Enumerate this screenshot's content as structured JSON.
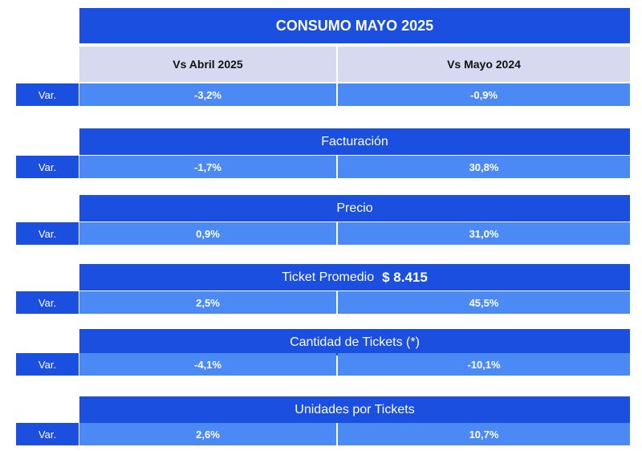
{
  "title": "CONSUMO MAYO 2025",
  "columns": [
    "Vs Abril 2025",
    "Vs Mayo 2024"
  ],
  "var_label": "Var.",
  "rows": [
    {
      "header": "",
      "extra": "",
      "values": [
        "-3,2%",
        "-0,9%"
      ]
    },
    {
      "header": "Facturación",
      "extra": "",
      "values": [
        "-1,7%",
        "30,8%"
      ]
    },
    {
      "header": "Precio",
      "extra": "",
      "values": [
        "0,9%",
        "31,0%"
      ]
    },
    {
      "header": "Ticket Promedio",
      "extra": "$ 8.415",
      "values": [
        "2,5%",
        "45,5%"
      ]
    },
    {
      "header": "Cantidad de Tickets (*)",
      "extra": "",
      "values": [
        "-4,1%",
        "-10,1%"
      ]
    },
    {
      "header": "Unidades por Tickets",
      "extra": "",
      "values": [
        "2,6%",
        "10,7%"
      ]
    }
  ]
}
